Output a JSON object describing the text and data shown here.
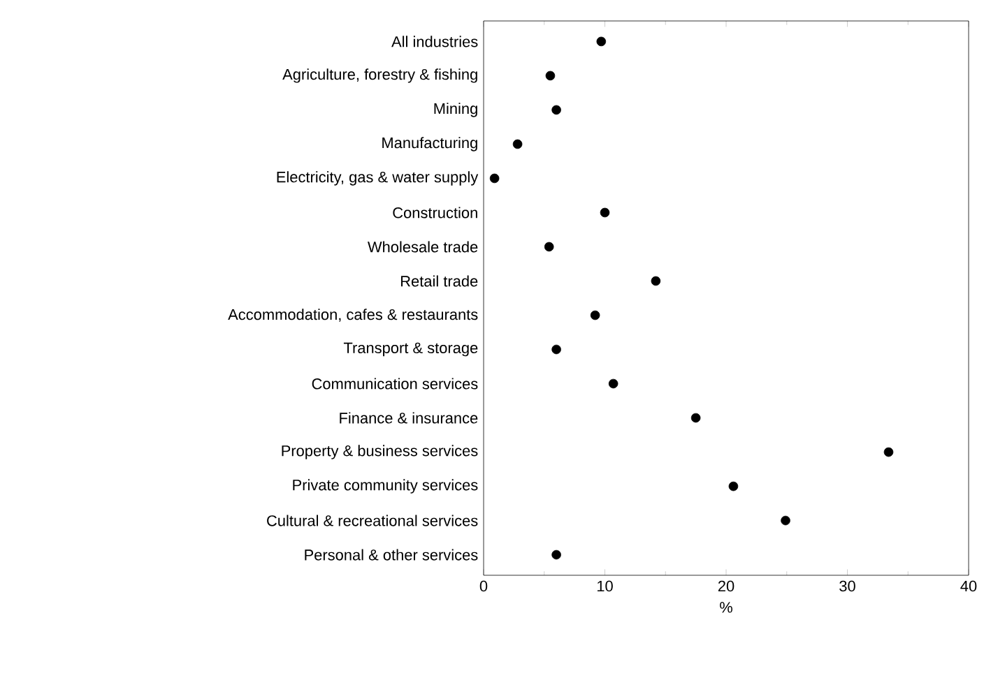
{
  "chart_data": {
    "type": "scatter",
    "orientation": "horizontal",
    "xlabel": "%",
    "categories": [
      "All industries",
      "Agriculture, forestry & fishing",
      "Mining",
      "Manufacturing",
      "Electricity, gas & water supply",
      "Construction",
      "Wholesale trade",
      "Retail trade",
      "Accommodation, cafes & restaurants",
      "Transport & storage",
      "Communication services",
      "Finance & insurance",
      "Property & business services",
      "Private community services",
      "Cultural & recreational services",
      "Personal & other services"
    ],
    "values": [
      9.7,
      5.5,
      6.0,
      2.8,
      0.9,
      10.0,
      5.4,
      14.2,
      9.2,
      6.0,
      10.7,
      17.5,
      33.4,
      20.6,
      24.9,
      6.0
    ],
    "color": "#000000",
    "marker": "circle",
    "xlim": [
      0,
      40
    ],
    "xticks": [
      0,
      10,
      20,
      30,
      40
    ],
    "grid": false
  }
}
